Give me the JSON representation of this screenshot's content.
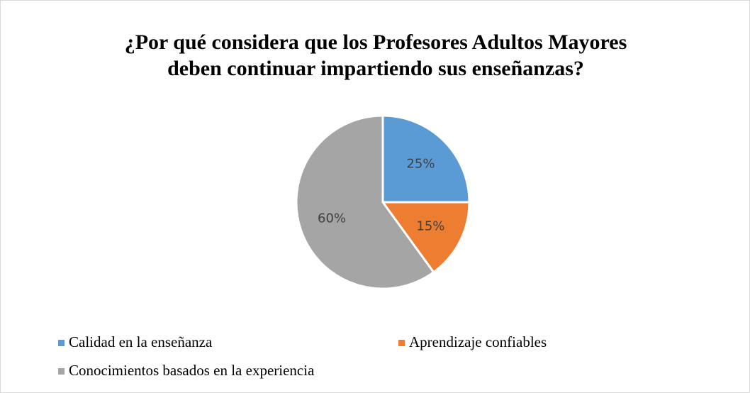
{
  "chart_data": {
    "type": "pie",
    "title": "¿Por qué considera que los Profesores Adultos Mayores deben continuar impartiendo sus enseñanzas?",
    "categories": [
      "Calidad en la enseñanza",
      "Aprendizaje confiables",
      "Conocimientos basados en la experiencia"
    ],
    "values": [
      25,
      15,
      60
    ],
    "value_labels": [
      "25%",
      "15%",
      "60%"
    ],
    "colors": [
      "#5b9bd5",
      "#ed7d31",
      "#a5a5a5"
    ],
    "legend": "bottom"
  }
}
